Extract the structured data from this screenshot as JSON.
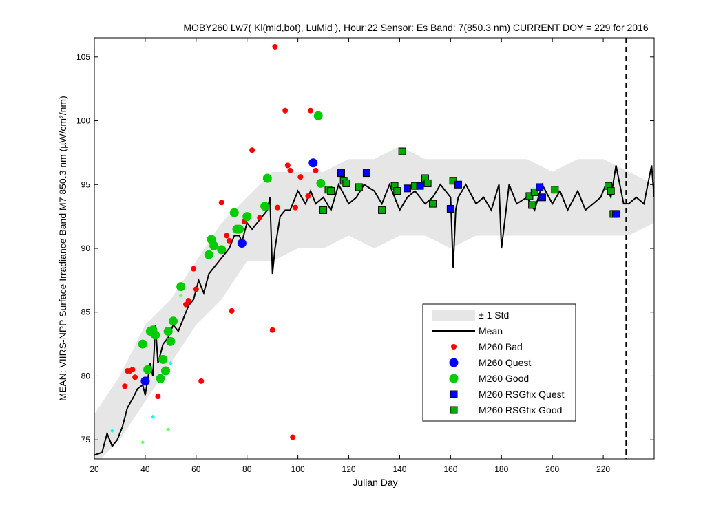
{
  "chart_data": {
    "type": "scatter",
    "title": "MOBY260   Lw7( Kl(mid,bot), LuMid ),   Hour:22 Sensor: Es Band: 7(850.3 nm)   CURRENT DOY = 229 for 2016",
    "xlabel": "Julian Day",
    "ylabel": "MEAN: VIIRS-NPP Surface Irradiance Band M7 850.3 nm (µW/cm²/nm)",
    "xlim": [
      20,
      240
    ],
    "ylim": [
      73.5,
      106.5
    ],
    "x_ticks": [
      "20",
      "40",
      "60",
      "80",
      "100",
      "120",
      "140",
      "160",
      "180",
      "200",
      "220"
    ],
    "y_ticks": [
      "75",
      "80",
      "85",
      "90",
      "95",
      "100",
      "105"
    ],
    "current_doy": 229,
    "legend_position": "lower-right",
    "legend": [
      "± 1 Std",
      "Mean",
      "M260 Bad",
      "M260 Quest",
      "M260 Good",
      "M260 RSGfix Quest",
      "M260 RSGfix Good"
    ],
    "series": [
      {
        "name": "± 1 Std",
        "kind": "band",
        "color": "#e6e6e6",
        "x": [
          20,
          30,
          40,
          50,
          60,
          70,
          80,
          90,
          100,
          110,
          120,
          130,
          140,
          150,
          160,
          170,
          180,
          190,
          200,
          210,
          220,
          230,
          240
        ],
        "low": [
          73,
          75,
          78,
          81,
          84,
          86,
          89,
          89,
          90,
          90,
          91,
          90,
          91,
          91,
          90,
          91,
          91,
          91,
          91,
          91,
          91,
          91,
          92
        ],
        "high": [
          77,
          80,
          84,
          86,
          89,
          92,
          94,
          96,
          96,
          96,
          97,
          97,
          98,
          97,
          97,
          97,
          97,
          97,
          96,
          97,
          97,
          96,
          95
        ]
      },
      {
        "name": "Mean",
        "kind": "line",
        "color": "#000000",
        "x": [
          20,
          23,
          25,
          27,
          29,
          31,
          33,
          35,
          37,
          39,
          40,
          42,
          43,
          44,
          45,
          47,
          49,
          51,
          53,
          55,
          57,
          59,
          61,
          63,
          65,
          67,
          69,
          71,
          73,
          75,
          77,
          78,
          80,
          82,
          84,
          86,
          88,
          89,
          90,
          91,
          93,
          95,
          97,
          100,
          103,
          105,
          107,
          110,
          113,
          116,
          120,
          123,
          126,
          130,
          133,
          136,
          140,
          143,
          146,
          150,
          153,
          156,
          160,
          161,
          162,
          163,
          166,
          170,
          173,
          176,
          179,
          180,
          183,
          186,
          190,
          193,
          196,
          200,
          203,
          206,
          210,
          213,
          216,
          219,
          221,
          223,
          225,
          228,
          230,
          233,
          236,
          239,
          240
        ],
        "y": [
          73.8,
          74,
          75.5,
          74.5,
          75,
          76,
          77.5,
          78.2,
          79,
          79.3,
          78.5,
          81,
          80,
          84,
          81,
          82.5,
          83,
          84,
          83.5,
          84.5,
          85.5,
          86,
          87.5,
          86.5,
          88,
          88.5,
          89,
          89.5,
          90,
          91,
          91,
          90.5,
          92,
          91.5,
          92,
          92.5,
          93,
          94,
          88,
          90,
          92.5,
          93,
          93,
          94.5,
          93.5,
          94.5,
          93.5,
          94,
          93,
          95,
          93.5,
          94,
          95,
          94.5,
          93.5,
          95,
          93,
          94,
          94.5,
          93.5,
          94,
          95,
          94,
          88.5,
          93,
          94,
          95,
          93.5,
          94,
          93,
          95,
          90,
          95,
          93.5,
          94,
          93,
          95,
          93.5,
          94.5,
          93,
          94.5,
          93,
          93.5,
          94,
          95,
          94,
          96.5,
          93.5,
          93.5,
          94,
          93.5,
          96.5,
          94
        ]
      },
      {
        "name": "M260 Bad",
        "kind": "markers",
        "color": "#ff0000",
        "x": [
          32,
          33,
          34,
          35,
          36,
          45,
          56,
          57,
          59,
          60,
          62,
          70,
          72,
          73,
          74,
          79,
          82,
          85,
          90,
          91,
          92,
          95,
          96,
          97,
          98,
          99,
          101,
          104,
          105,
          107
        ],
        "y": [
          79.2,
          80.4,
          80.4,
          80.5,
          79.9,
          78.4,
          85.6,
          85.9,
          88.4,
          86.8,
          79.6,
          93.6,
          91,
          90.6,
          85.1,
          92.1,
          97.7,
          92.4,
          83.6,
          105.8,
          93.2,
          100.8,
          96.5,
          96.1,
          75.2,
          93.2,
          95.6,
          94.1,
          100.8,
          96.1
        ]
      },
      {
        "name": "M260 Quest",
        "kind": "markers",
        "color": "#0000ff",
        "x": [
          40,
          78,
          106
        ],
        "y": [
          79.6,
          90.4,
          96.7
        ]
      },
      {
        "name": "M260 Good",
        "kind": "markers",
        "color": "#00cc00",
        "x": [
          39,
          41,
          42,
          43,
          44,
          46,
          47,
          48,
          49,
          50,
          51,
          54,
          65,
          66,
          67,
          70,
          75,
          76,
          77,
          80,
          87,
          88,
          108,
          109
        ],
        "y": [
          82.5,
          80.5,
          83.5,
          83.6,
          83.2,
          79.8,
          81.3,
          80.4,
          83.5,
          82.7,
          84.3,
          87,
          89.5,
          90.7,
          90.2,
          89.9,
          92.8,
          91.5,
          91.5,
          92.5,
          93.3,
          95.5,
          100.4,
          95.1
        ]
      },
      {
        "name": "M260 RSGfix Quest",
        "kind": "squares",
        "color": "#0000ff",
        "x": [
          117,
          127,
          143,
          148,
          160,
          163,
          195,
          196,
          225
        ],
        "y": [
          95.9,
          95.9,
          94.7,
          94.9,
          93.1,
          95,
          94.8,
          94,
          92.7
        ]
      },
      {
        "name": "M260 RSGfix Good",
        "kind": "squares",
        "color": "#00aa00",
        "x": [
          110,
          112,
          113,
          118,
          119,
          124,
          133,
          138,
          139,
          141,
          146,
          150,
          151,
          153,
          161,
          191,
          192,
          193,
          201,
          222,
          223,
          224
        ],
        "y": [
          93,
          94.6,
          94.5,
          95.3,
          95.1,
          94.8,
          93,
          94.9,
          94.5,
          97.6,
          94.9,
          95.5,
          95.1,
          93.5,
          95.3,
          94.1,
          93.4,
          94.4,
          94.6,
          94.9,
          94.5,
          92.7
        ]
      }
    ],
    "extra_points": {
      "name": "light markers",
      "colors": [
        "#00ffff",
        "#66ff66"
      ],
      "x": [
        27,
        39,
        43,
        49,
        50,
        54
      ],
      "y": [
        75.7,
        74.8,
        76.8,
        75.8,
        81,
        86.3
      ]
    }
  }
}
